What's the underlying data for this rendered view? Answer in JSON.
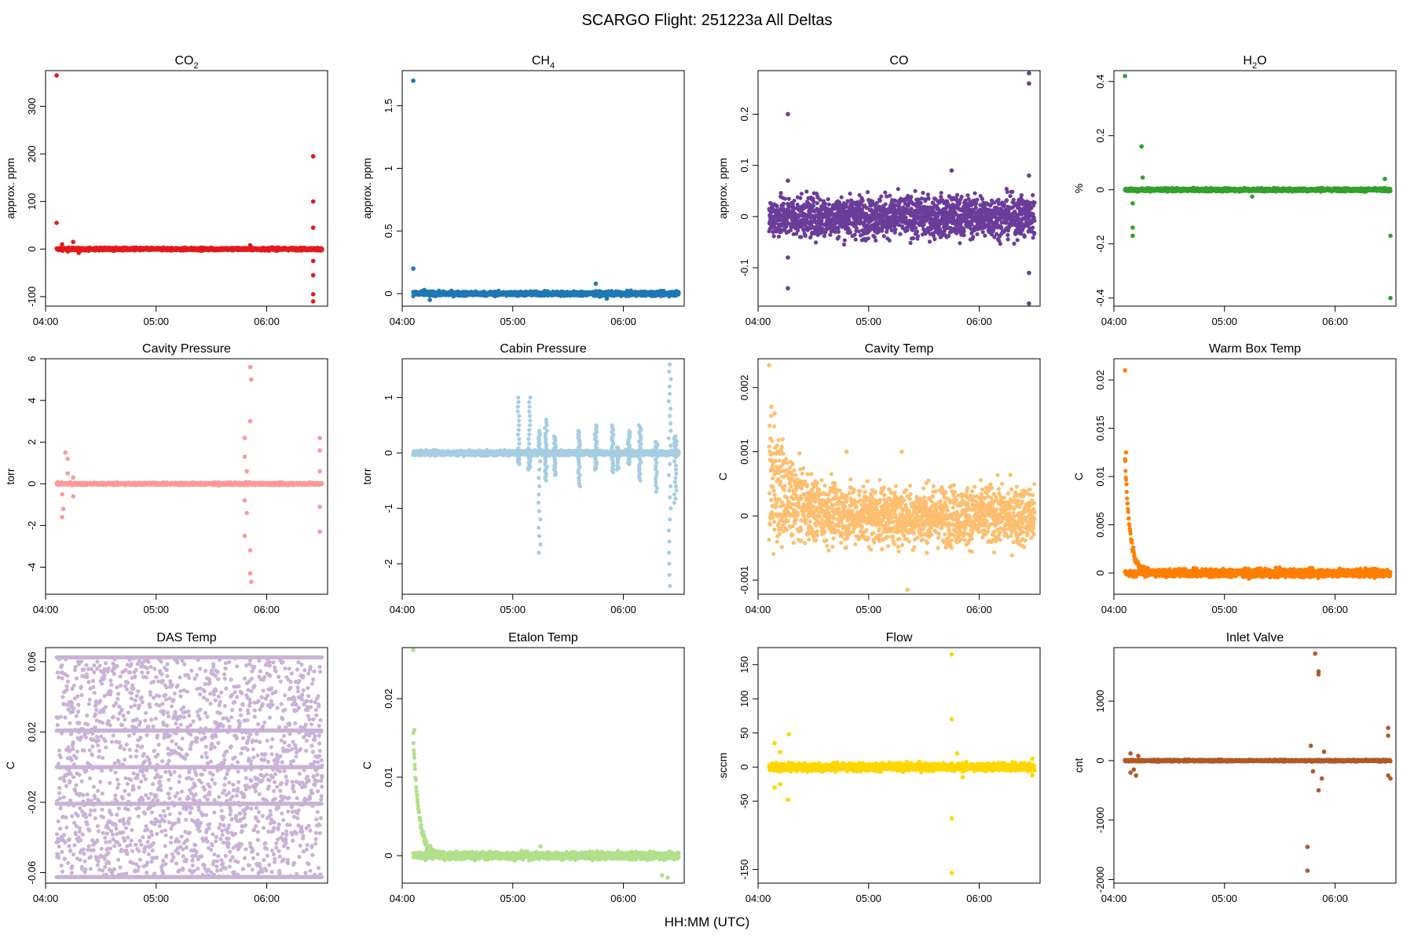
{
  "title": "SCARGO Flight: 251223a  All Deltas",
  "xlabel": "HH:MM (UTC)",
  "chart_data": [
    {
      "type": "scatter",
      "title": "CO2",
      "title_main": "CO",
      "title_sub": "2",
      "ylabel": "approx. ppm",
      "color": "#E41A1C",
      "xlim": [
        4.0,
        6.55
      ],
      "ylim": [
        -120,
        375
      ],
      "xticks": [
        "04:00",
        "05:00",
        "06:00"
      ],
      "yticks": [
        -100,
        0,
        100,
        200,
        300
      ],
      "baseline": 0,
      "noise": 2,
      "band": [
        4.1,
        6.5
      ],
      "points": [
        [
          4.1,
          365
        ],
        [
          4.1,
          55
        ],
        [
          4.15,
          10
        ],
        [
          4.2,
          -5
        ],
        [
          4.25,
          15
        ],
        [
          4.3,
          -8
        ],
        [
          4.5,
          3
        ],
        [
          4.7,
          -3
        ],
        [
          5.85,
          8
        ],
        [
          6.42,
          195
        ],
        [
          6.42,
          100
        ],
        [
          6.42,
          45
        ],
        [
          6.42,
          -25
        ],
        [
          6.42,
          -55
        ],
        [
          6.42,
          -95
        ],
        [
          6.42,
          -110
        ]
      ]
    },
    {
      "type": "scatter",
      "title": "CH4",
      "title_main": "CH",
      "title_sub": "4",
      "ylabel": "approx. ppm",
      "color": "#1F78B4",
      "xlim": [
        4.0,
        6.55
      ],
      "ylim": [
        -0.1,
        1.78
      ],
      "xticks": [
        "04:00",
        "05:00",
        "06:00"
      ],
      "yticks": [
        0.0,
        0.5,
        1.0,
        1.5
      ],
      "baseline": 0,
      "noise": 0.012,
      "band": [
        4.1,
        6.5
      ],
      "points": [
        [
          4.1,
          1.7
        ],
        [
          4.1,
          0.2
        ],
        [
          4.2,
          0.03
        ],
        [
          4.25,
          -0.05
        ],
        [
          5.75,
          0.08
        ],
        [
          5.85,
          -0.04
        ],
        [
          6.48,
          0.02
        ]
      ]
    },
    {
      "type": "scatter",
      "title": "CO",
      "ylabel": "approx. ppm",
      "color": "#6A3D9A",
      "xlim": [
        4.0,
        6.55
      ],
      "ylim": [
        -0.175,
        0.285
      ],
      "xticks": [
        "04:00",
        "05:00",
        "06:00"
      ],
      "yticks": [
        -0.1,
        0.0,
        0.1,
        0.2
      ],
      "baseline": 0,
      "noise": 0.028,
      "band": [
        4.1,
        6.5
      ],
      "points": [
        [
          4.27,
          0.2
        ],
        [
          4.27,
          0.07
        ],
        [
          4.27,
          -0.08
        ],
        [
          4.27,
          -0.14
        ],
        [
          5.75,
          0.09
        ],
        [
          6.45,
          0.28
        ],
        [
          6.45,
          0.26
        ],
        [
          6.45,
          0.08
        ],
        [
          6.45,
          -0.11
        ],
        [
          6.45,
          -0.17
        ]
      ]
    },
    {
      "type": "scatter",
      "title": "H2O",
      "title_main": "H",
      "title_sub": "2",
      "title_rest": "O",
      "ylabel": "%",
      "color": "#33A02C",
      "xlim": [
        4.0,
        6.55
      ],
      "ylim": [
        -0.43,
        0.44
      ],
      "xticks": [
        "04:00",
        "05:00",
        "06:00"
      ],
      "yticks": [
        -0.4,
        -0.2,
        0.0,
        0.2,
        0.4
      ],
      "baseline": 0,
      "noise": 0.004,
      "band": [
        4.1,
        6.5
      ],
      "points": [
        [
          4.1,
          0.42
        ],
        [
          4.25,
          0.16
        ],
        [
          4.26,
          0.045
        ],
        [
          4.17,
          -0.14
        ],
        [
          4.17,
          -0.17
        ],
        [
          4.17,
          -0.05
        ],
        [
          5.25,
          -0.025
        ],
        [
          6.45,
          0.04
        ],
        [
          6.5,
          -0.17
        ],
        [
          6.5,
          -0.4
        ]
      ]
    },
    {
      "type": "scatter",
      "title": "Cavity Pressure",
      "ylabel": "torr",
      "color": "#FB9A99",
      "xlim": [
        4.0,
        6.55
      ],
      "ylim": [
        -5.3,
        6.0
      ],
      "xticks": [
        "04:00",
        "05:00",
        "06:00"
      ],
      "yticks": [
        -4,
        -2,
        0,
        2,
        4,
        6
      ],
      "baseline": 0,
      "noise": 0.04,
      "band": [
        4.1,
        6.5
      ],
      "points": [
        [
          4.18,
          1.5
        ],
        [
          4.2,
          1.2
        ],
        [
          4.2,
          0.5
        ],
        [
          4.15,
          -0.5
        ],
        [
          4.16,
          -1.2
        ],
        [
          4.15,
          -1.6
        ],
        [
          4.25,
          -0.6
        ],
        [
          4.25,
          0.3
        ],
        [
          5.85,
          5.6
        ],
        [
          5.86,
          5.0
        ],
        [
          5.85,
          3.0
        ],
        [
          5.8,
          2.2
        ],
        [
          5.8,
          1.3
        ],
        [
          5.82,
          0.6
        ],
        [
          5.8,
          -0.8
        ],
        [
          5.82,
          -1.4
        ],
        [
          5.8,
          -2.5
        ],
        [
          5.85,
          -3.2
        ],
        [
          5.85,
          -4.3
        ],
        [
          5.86,
          -4.7
        ],
        [
          6.48,
          2.2
        ],
        [
          6.48,
          1.6
        ],
        [
          6.48,
          0.6
        ],
        [
          6.48,
          -1.1
        ],
        [
          6.48,
          -2.3
        ]
      ]
    },
    {
      "type": "scatter",
      "title": "Cabin Pressure",
      "ylabel": "torr",
      "color": "#A6CEE3",
      "xlim": [
        4.0,
        6.55
      ],
      "ylim": [
        -2.55,
        1.7
      ],
      "xticks": [
        "04:00",
        "05:00",
        "06:00"
      ],
      "yticks": [
        -2,
        -1,
        0,
        1
      ],
      "baseline": 0,
      "noise": 0.03,
      "band": [
        4.1,
        6.5
      ],
      "spikes": [
        [
          5.05,
          1.0,
          -0.2
        ],
        [
          5.15,
          1.0,
          -0.3
        ],
        [
          5.24,
          0.4,
          -1.8
        ],
        [
          5.3,
          0.6,
          -0.5
        ],
        [
          5.38,
          0.3,
          -0.4
        ],
        [
          5.6,
          0.4,
          -0.6
        ],
        [
          5.75,
          0.5,
          -0.3
        ],
        [
          5.9,
          0.5,
          -0.35
        ],
        [
          5.95,
          0.1,
          -0.3
        ],
        [
          6.05,
          0.4,
          -0.2
        ],
        [
          6.15,
          0.5,
          -0.5
        ],
        [
          6.3,
          0.2,
          -0.7
        ],
        [
          6.42,
          1.6,
          -2.4
        ],
        [
          6.47,
          0.3,
          -0.9
        ]
      ]
    },
    {
      "type": "scatter",
      "title": "Cavity Temp",
      "ylabel": "C",
      "color": "#FDBF6F",
      "xlim": [
        4.0,
        6.55
      ],
      "ylim": [
        -0.00122,
        0.00245
      ],
      "xticks": [
        "04:00",
        "05:00",
        "06:00"
      ],
      "yticks": [
        -0.001,
        0.0,
        0.001,
        0.002
      ],
      "baseline": 0,
      "noise": 0.00032,
      "band": [
        4.1,
        6.5
      ],
      "decay": [
        0.0011,
        0.25
      ],
      "points": [
        [
          4.1,
          0.00235
        ],
        [
          4.12,
          0.0017
        ],
        [
          4.15,
          0.0016
        ],
        [
          5.35,
          -0.00115
        ],
        [
          5.3,
          0.001
        ],
        [
          4.8,
          0.001
        ]
      ]
    },
    {
      "type": "scatter",
      "title": "Warm Box Temp",
      "ylabel": "C",
      "color": "#FF7F00",
      "xlim": [
        4.0,
        6.55
      ],
      "ylim": [
        -0.0022,
        0.0222
      ],
      "xticks": [
        "04:00",
        "05:00",
        "06:00"
      ],
      "yticks": [
        0.0,
        0.005,
        0.01,
        0.015,
        0.02
      ],
      "baseline": 0,
      "noise": 0.00028,
      "band": [
        4.1,
        6.5
      ],
      "decay": [
        0.012,
        0.045
      ],
      "points": [
        [
          4.1,
          0.021
        ],
        [
          4.11,
          0.0125
        ]
      ]
    },
    {
      "type": "scatter",
      "title": "DAS Temp",
      "ylabel": "C",
      "color": "#CAB2D6",
      "xlim": [
        4.0,
        6.55
      ],
      "ylim": [
        -0.066,
        0.068
      ],
      "xticks": [
        "04:00",
        "05:00",
        "06:00"
      ],
      "yticks": [
        -0.06,
        -0.02,
        0.02,
        0.06
      ],
      "baseline": 0,
      "uniform": 0.0625,
      "band": [
        4.1,
        6.5
      ]
    },
    {
      "type": "scatter",
      "title": "Etalon Temp",
      "ylabel": "C",
      "color": "#B2DF8A",
      "xlim": [
        4.0,
        6.55
      ],
      "ylim": [
        -0.0035,
        0.0265
      ],
      "xticks": [
        "04:00",
        "05:00",
        "06:00"
      ],
      "yticks": [
        0.0,
        0.01,
        0.02
      ],
      "baseline": 0,
      "noise": 0.00032,
      "band": [
        4.1,
        6.5
      ],
      "decay": [
        0.015,
        0.05
      ],
      "points": [
        [
          4.1,
          0.0262
        ],
        [
          4.11,
          0.016
        ],
        [
          5.25,
          0.0012
        ],
        [
          6.4,
          -0.0028
        ],
        [
          6.35,
          -0.0025
        ]
      ]
    },
    {
      "type": "scatter",
      "title": "Flow",
      "ylabel": "sccm",
      "color": "#FFD700",
      "xlim": [
        4.0,
        6.55
      ],
      "ylim": [
        -170,
        175
      ],
      "xticks": [
        "04:00",
        "05:00",
        "06:00"
      ],
      "yticks": [
        -150,
        -50,
        0,
        50,
        100,
        150
      ],
      "baseline": 0,
      "noise": 4,
      "band": [
        4.1,
        6.5
      ],
      "points": [
        [
          4.15,
          35
        ],
        [
          4.2,
          22
        ],
        [
          4.28,
          48
        ],
        [
          4.15,
          -30
        ],
        [
          4.2,
          -25
        ],
        [
          4.27,
          -48
        ],
        [
          5.75,
          165
        ],
        [
          5.75,
          70
        ],
        [
          5.75,
          -75
        ],
        [
          5.75,
          -155
        ],
        [
          5.8,
          20
        ],
        [
          5.85,
          -15
        ],
        [
          6.48,
          12
        ],
        [
          6.48,
          -12
        ]
      ]
    },
    {
      "type": "scatter",
      "title": "Inlet Valve",
      "ylabel": "cnt",
      "color": "#B15928",
      "xlim": [
        4.0,
        6.55
      ],
      "ylim": [
        -2060,
        1900
      ],
      "xticks": [
        "04:00",
        "05:00",
        "06:00"
      ],
      "yticks": [
        -2000,
        -1000,
        0,
        1000
      ],
      "baseline": 0,
      "noise": 10,
      "band": [
        4.1,
        6.5
      ],
      "points": [
        [
          4.15,
          120
        ],
        [
          4.18,
          -150
        ],
        [
          4.2,
          -250
        ],
        [
          4.15,
          -200
        ],
        [
          4.22,
          80
        ],
        [
          5.82,
          1800
        ],
        [
          5.85,
          1500
        ],
        [
          5.85,
          1450
        ],
        [
          5.75,
          -1450
        ],
        [
          5.75,
          -1850
        ],
        [
          5.78,
          250
        ],
        [
          5.8,
          -180
        ],
        [
          5.85,
          -500
        ],
        [
          5.88,
          -300
        ],
        [
          5.9,
          150
        ],
        [
          6.48,
          550
        ],
        [
          6.48,
          420
        ],
        [
          6.48,
          -250
        ],
        [
          6.5,
          -300
        ]
      ]
    }
  ]
}
